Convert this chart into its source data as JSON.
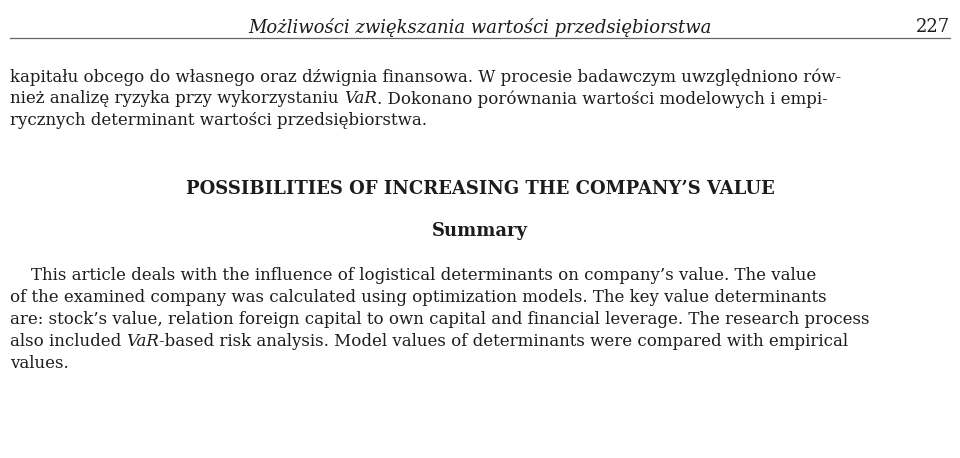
{
  "background_color": "#ffffff",
  "header_italic": "Możliwości zwiększania wartości przedsiębiorstwa",
  "header_page": "227",
  "polish_line1": "kapitału obcego do własnego oraz dźwignia finansowa. W procesie badawczym uwzględniono rów-",
  "polish_line2_pre": "nież analizę ryzyka przy wykorzystaniu ",
  "polish_line2_italic": "VaR",
  "polish_line2_post": ". Dokonano porównania wartości modelowych i empi-",
  "polish_line3": "rycznych determinant wartości przedsiębiorstwa.",
  "main_title": "POSSIBILITIES OF INCREASING THE COMPANY’S VALUE",
  "summary_title": "Summary",
  "body_line1_pre": "    This article deals with the influence of logistical determinants on company’s value. The value",
  "body_line2": "of the examined company was calculated using optimization models. The key value determinants",
  "body_line3": "are: stock’s value, relation foreign capital to own capital and financial leverage. The research process",
  "body_line4_pre": "also included ",
  "body_line4_italic": "VaR",
  "body_line4_post": "-based risk analysis. Model values of determinants were compared with empirical",
  "body_line5": "values.",
  "text_color": "#1c1c1c",
  "header_fs": 13,
  "body_fs": 12,
  "title_fs": 13,
  "summary_fs": 13
}
